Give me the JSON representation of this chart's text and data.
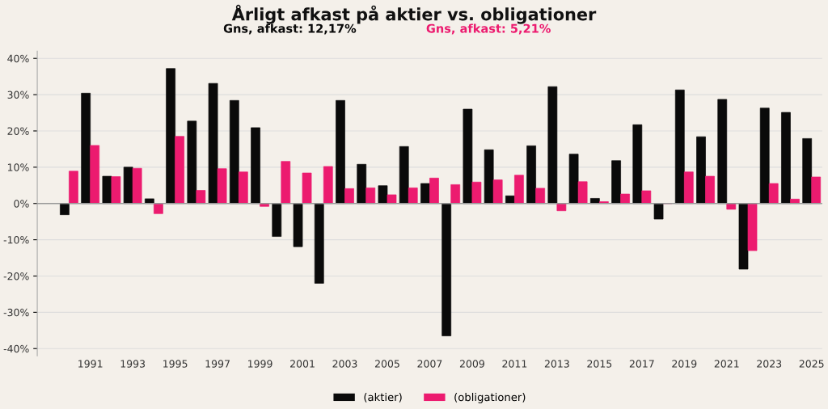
{
  "chart_data": {
    "type": "bar",
    "title": "Årligt afkast på aktier vs. obligationer",
    "annotations": [
      "Gns, afkast: 12,17%",
      "Gns, afkast: 5,21%"
    ],
    "categories": [
      null,
      "1991",
      null,
      "1993",
      null,
      "1995",
      null,
      "1997",
      null,
      "1999",
      null,
      "2001",
      null,
      "2003",
      null,
      "2005",
      null,
      "2007",
      null,
      "2009",
      null,
      "2011",
      null,
      "2013",
      null,
      "2015",
      null,
      "2017",
      null,
      "2019",
      null,
      "2021",
      null,
      "2023",
      null,
      "2025"
    ],
    "series": [
      {
        "name": "(aktier)",
        "color": "#0a0a0a",
        "values": [
          -3.1,
          30.4,
          7.5,
          10.0,
          1.3,
          37.2,
          22.7,
          33.1,
          28.4,
          20.9,
          -9.1,
          -11.9,
          -22.0,
          28.4,
          10.8,
          4.9,
          15.7,
          5.5,
          -36.5,
          26.0,
          14.8,
          2.1,
          15.9,
          32.2,
          13.6,
          1.4,
          11.8,
          21.7,
          -4.3,
          31.3,
          18.4,
          28.7,
          -18.1,
          26.3,
          25.1,
          17.9
        ]
      },
      {
        "name": "(obligationer)",
        "color": "#ec1b6f",
        "values": [
          8.9,
          16.0,
          7.4,
          9.7,
          -2.8,
          18.5,
          3.6,
          9.6,
          8.7,
          -0.8,
          11.6,
          8.4,
          10.2,
          4.1,
          4.3,
          2.4,
          4.3,
          7.0,
          5.2,
          5.9,
          6.5,
          7.8,
          4.2,
          -2.0,
          6.0,
          0.5,
          2.6,
          3.5,
          0.0,
          8.7,
          7.5,
          -1.6,
          -13.0,
          5.5,
          1.2,
          7.3
        ]
      }
    ],
    "ylim": [
      -42,
      42
    ],
    "yticks": [
      {
        "value": -40,
        "label": "-40%"
      },
      {
        "value": -30,
        "label": "-30%"
      },
      {
        "value": -20,
        "label": "-20%"
      },
      {
        "value": -10,
        "label": "-10%"
      },
      {
        "value": 0,
        "label": "0%"
      },
      {
        "value": 10,
        "label": "10%"
      },
      {
        "value": 20,
        "label": "20%"
      },
      {
        "value": 30,
        "label": "30%"
      },
      {
        "value": 40,
        "label": "40%"
      }
    ],
    "grid": "y",
    "legend": "bottom"
  }
}
